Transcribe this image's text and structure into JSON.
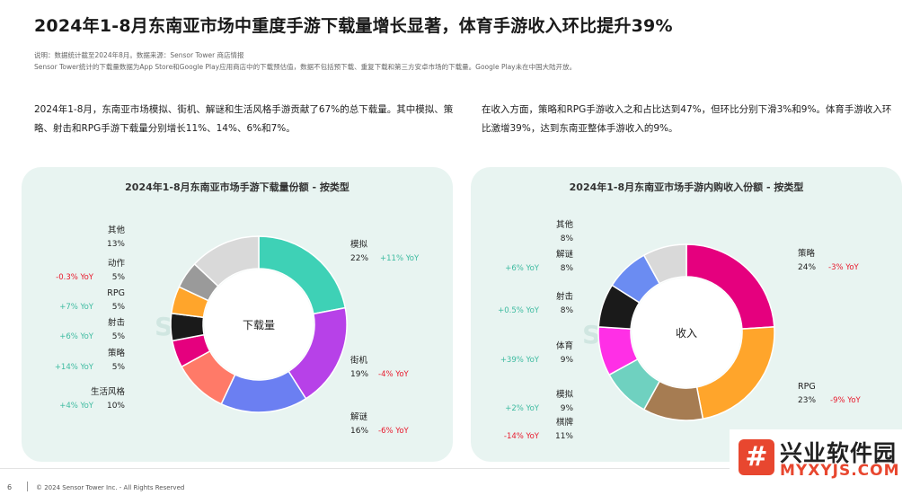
{
  "header": {
    "title": "2024年1-8月东南亚市场中重度手游下载量增长显著，体育手游收入环比提升39%",
    "note1": "说明：数据统计截至2024年8月。数据来源：Sensor Tower 商店情报",
    "note2": "Sensor Tower统计的下载量数据为App Store和Google Play应用商店中的下载预估值，数据不包括预下载、重复下载和第三方安卓市场的下载量。Google Play未在中国大陆开放。"
  },
  "paragraphs": {
    "left": "2024年1-8月，东南亚市场模拟、街机、解谜和生活风格手游贡献了67%的总下载量。其中模拟、策略、射击和RPG手游下载量分别增长11%、14%、6%和7%。",
    "right": "在收入方面，策略和RPG手游收入之和占比达到47%，但环比分别下滑3%和9%。体育手游收入环比激增39%，达到东南亚整体手游收入的9%。"
  },
  "colors": {
    "positive": "#3dbba0",
    "negative": "#e8192c",
    "panel_bg": "#e8f4f1"
  },
  "chart_data": [
    {
      "type": "pie",
      "title": "2024年1-8月东南亚市场手游下载量份额 - 按类型",
      "center_label": "下载量",
      "watermark": "Sensor Tower",
      "slices": [
        {
          "name": "模拟",
          "value": 22,
          "pct": "22%",
          "yoy": "+11% YoY",
          "color": "#3ed1b6"
        },
        {
          "name": "街机",
          "value": 19,
          "pct": "19%",
          "yoy": "-4% YoY",
          "color": "#b741e8"
        },
        {
          "name": "解谜",
          "value": 16,
          "pct": "16%",
          "yoy": "-6% YoY",
          "color": "#6b7ff2"
        },
        {
          "name": "生活风格",
          "value": 10,
          "pct": "10%",
          "yoy": "+4% YoY",
          "color": "#ff7a68"
        },
        {
          "name": "策略",
          "value": 5,
          "pct": "5%",
          "yoy": "+14% YoY",
          "color": "#e5007e"
        },
        {
          "name": "射击",
          "value": 5,
          "pct": "5%",
          "yoy": "+6% YoY",
          "color": "#1a1a1a"
        },
        {
          "name": "RPG",
          "value": 5,
          "pct": "5%",
          "yoy": "+7% YoY",
          "color": "#ffa52b"
        },
        {
          "name": "动作",
          "value": 5,
          "pct": "5%",
          "yoy": "-0.3% YoY",
          "color": "#9a9a9a"
        },
        {
          "name": "其他",
          "value": 13,
          "pct": "13%",
          "yoy": "",
          "color": "#d9d9d9"
        }
      ]
    },
    {
      "type": "pie",
      "title": "2024年1-8月东南亚市场手游内购收入份额 - 按类型",
      "center_label": "收入",
      "watermark": "Sensor Tower",
      "slices": [
        {
          "name": "策略",
          "value": 24,
          "pct": "24%",
          "yoy": "-3% YoY",
          "color": "#e5007e"
        },
        {
          "name": "RPG",
          "value": 23,
          "pct": "23%",
          "yoy": "-9% YoY",
          "color": "#ffa52b"
        },
        {
          "name": "棋牌",
          "value": 11,
          "pct": "11%",
          "yoy": "-14% YoY",
          "color": "#a67c52"
        },
        {
          "name": "模拟",
          "value": 9,
          "pct": "9%",
          "yoy": "+2% YoY",
          "color": "#6fd1c0"
        },
        {
          "name": "体育",
          "value": 9,
          "pct": "9%",
          "yoy": "+39% YoY",
          "color": "#ff2fe6"
        },
        {
          "name": "射击",
          "value": 8,
          "pct": "8%",
          "yoy": "+0.5% YoY",
          "color": "#1a1a1a"
        },
        {
          "name": "解谜",
          "value": 8,
          "pct": "8%",
          "yoy": "+6% YoY",
          "color": "#6b8cf2"
        },
        {
          "name": "其他",
          "value": 8,
          "pct": "8%",
          "yoy": "",
          "color": "#d9d9d9"
        }
      ]
    }
  ],
  "footer": {
    "page_number": "6",
    "copyright": "© 2024 Sensor Tower Inc. - All Rights Reserved"
  },
  "watermark_site": {
    "name": "兴业软件园",
    "url": "MYXYJS.COM"
  }
}
